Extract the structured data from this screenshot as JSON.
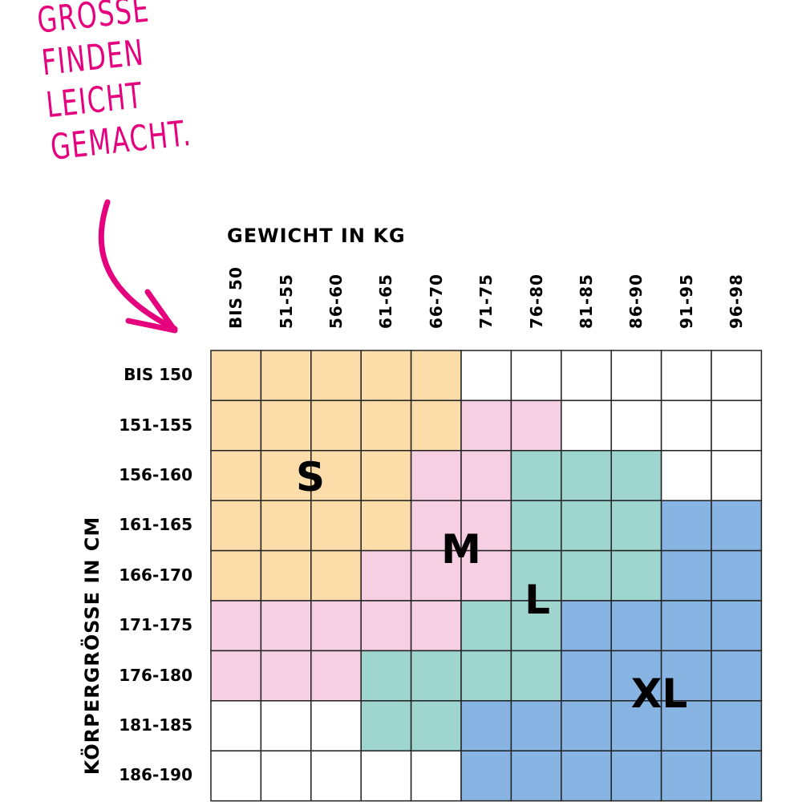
{
  "headline": [
    "GRÖSSE",
    "FINDEN",
    "LEICHT",
    "GEMACHT."
  ],
  "colors": {
    "accent": "#E5007E",
    "S": "#FCDDA9",
    "M": "#F7CFE3",
    "L": "#9ED5CF",
    "XL": "#87B4E2",
    "none": "#FFFFFF",
    "grid": "#222222"
  },
  "icons": {
    "arrow": "curved-arrow-icon"
  },
  "chart_data": {
    "type": "heatmap",
    "xlabel": "GEWICHT IN KG",
    "ylabel": "KÖRPERGRÖSSE IN CM",
    "columns": [
      "BIS 50",
      "51-55",
      "56-60",
      "61-65",
      "66-70",
      "71-75",
      "76-80",
      "81-85",
      "86-90",
      "91-95",
      "96-98"
    ],
    "rows": [
      "BIS 150",
      "151-155",
      "156-160",
      "161-165",
      "166-170",
      "171-175",
      "176-180",
      "181-185",
      "186-190"
    ],
    "cells": [
      [
        "S",
        "S",
        "S",
        "S",
        "S",
        "",
        "",
        "",
        "",
        "",
        ""
      ],
      [
        "S",
        "S",
        "S",
        "S",
        "S",
        "M",
        "M",
        "",
        "",
        "",
        ""
      ],
      [
        "S",
        "S",
        "S",
        "S",
        "M",
        "M",
        "L",
        "L",
        "L",
        "",
        ""
      ],
      [
        "S",
        "S",
        "S",
        "S",
        "M",
        "M",
        "L",
        "L",
        "L",
        "XL",
        "XL"
      ],
      [
        "S",
        "S",
        "S",
        "M",
        "M",
        "M",
        "L",
        "L",
        "L",
        "XL",
        "XL"
      ],
      [
        "M",
        "M",
        "M",
        "M",
        "M",
        "L",
        "L",
        "XL",
        "XL",
        "XL",
        "XL"
      ],
      [
        "M",
        "M",
        "M",
        "L",
        "L",
        "L",
        "L",
        "XL",
        "XL",
        "XL",
        "XL"
      ],
      [
        "",
        "",
        "",
        "L",
        "L",
        "XL",
        "XL",
        "XL",
        "XL",
        "XL",
        "XL"
      ],
      [
        "",
        "",
        "",
        "",
        "",
        "XL",
        "XL",
        "XL",
        "XL",
        "XL",
        "XL"
      ]
    ],
    "size_labels": [
      "S",
      "M",
      "L",
      "XL"
    ]
  }
}
